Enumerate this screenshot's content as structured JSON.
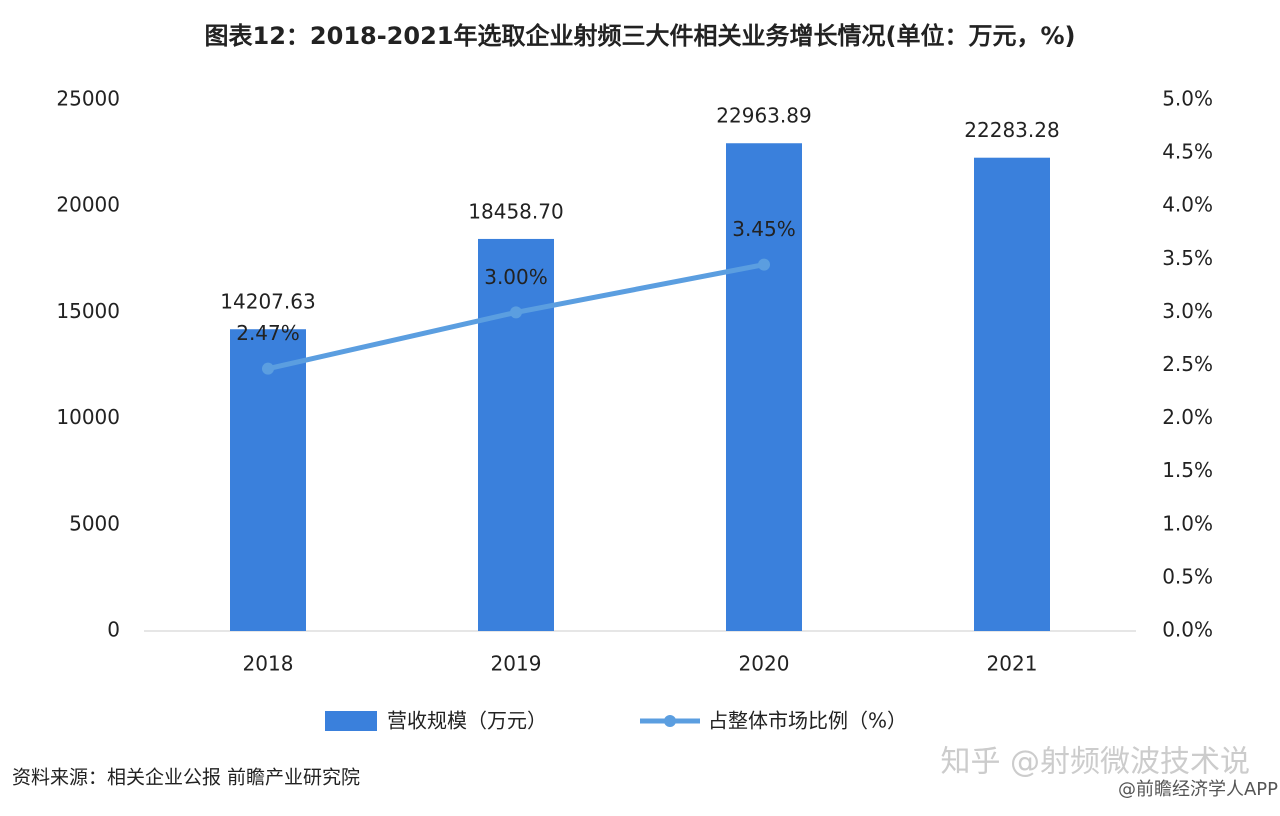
{
  "chart_data": {
    "type": "bar_line",
    "title": "图表12：2018-2021年选取企业射频三大件相关业务增长情况(单位：万元，%)",
    "categories": [
      "2018",
      "2019",
      "2020",
      "2021"
    ],
    "series": [
      {
        "name": "营收规模（万元）",
        "type": "bar",
        "color": "#3a80dc",
        "values": [
          14207.63,
          18458.7,
          22963.89,
          22283.28
        ],
        "value_labels": [
          "14207.63",
          "18458.70",
          "22963.89",
          "22283.28"
        ]
      },
      {
        "name": "占整体市场比例（%）",
        "type": "line",
        "axis": "y2",
        "color": "#5b9ee0",
        "values": [
          2.47,
          3.0,
          3.45,
          null
        ],
        "value_labels": [
          "2.47%",
          "3.00%",
          "3.45%",
          null
        ]
      }
    ],
    "ylim": [
      0,
      25000
    ],
    "yticks": [
      0,
      5000,
      10000,
      15000,
      20000,
      25000
    ],
    "y2lim": [
      0,
      5
    ],
    "y2ticks": [
      {
        "value": 0,
        "label": "0.0%"
      },
      {
        "value": 0.5,
        "label": "0.5%"
      },
      {
        "value": 1,
        "label": "1.0%"
      },
      {
        "value": 1.5,
        "label": "1.5%"
      },
      {
        "value": 2,
        "label": "2.0%"
      },
      {
        "value": 2.5,
        "label": "2.5%"
      },
      {
        "value": 3,
        "label": "3.0%"
      },
      {
        "value": 3.5,
        "label": "3.5%"
      },
      {
        "value": 4,
        "label": "4.0%"
      },
      {
        "value": 4.5,
        "label": "4.5%"
      },
      {
        "value": 5,
        "label": "5.0%"
      }
    ],
    "grid": false,
    "source": "资料来源：相关企业公报 前瞻产业研究院",
    "annotations": [
      "知乎 @射频微波技术说",
      "@前瞻经济学人APP"
    ]
  }
}
